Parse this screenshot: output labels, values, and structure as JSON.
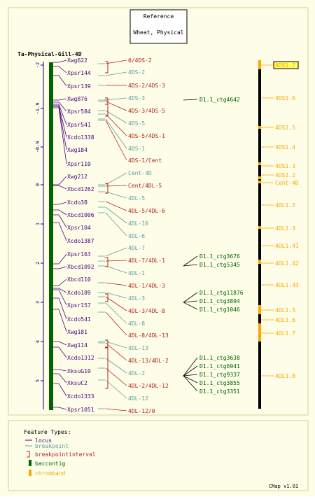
{
  "reference_box": {
    "line1": "Reference",
    "line2": "Wheat, Physical"
  },
  "map_title": "Ta-Physical-Gill-4D",
  "scale_ticks": [
    "-2",
    "-1.9",
    "-0.9",
    "0",
    "1",
    "2",
    "3",
    "4",
    "5"
  ],
  "loci": [
    "Xwg622",
    "Xpsr144",
    "Xpsr139",
    "Xwg876",
    "Xpsr584",
    "Xpsr541",
    "Xcdo1338",
    "Xwg184",
    "Xpsr110",
    "Xwg212",
    "Xbcd1262",
    "Xcdo38",
    "Xbcd1006",
    "Xpsr104",
    "Xcdo1387",
    "Xpsr163",
    "Xbcd1092",
    "Xbcd110",
    "Xcdo189",
    "Xpsr157",
    "Xcdo541",
    "Xwg181",
    "Xwg114",
    "Xcdo1312",
    "XksuG10",
    "XksuC2",
    "Xcdo1333",
    "Xpsr1051"
  ],
  "bins": [
    {
      "label": "0/4DS-2",
      "kind": "interval"
    },
    {
      "label": "4DS-2",
      "kind": "breakpoint"
    },
    {
      "label": "4DS-2/4DS-3",
      "kind": "interval"
    },
    {
      "label": "4DS-3",
      "kind": "breakpoint"
    },
    {
      "label": "4DS-3/4DS-5",
      "kind": "interval"
    },
    {
      "label": "4DS-5",
      "kind": "breakpoint"
    },
    {
      "label": "4DS-5/4DS-1",
      "kind": "interval"
    },
    {
      "label": "4DS-1",
      "kind": "breakpoint"
    },
    {
      "label": "4DS-1/Cent",
      "kind": "interval"
    },
    {
      "label": "Cent-4D",
      "kind": "breakpoint"
    },
    {
      "label": "Cent/4DL-5",
      "kind": "interval"
    },
    {
      "label": "4DL-5",
      "kind": "breakpoint"
    },
    {
      "label": "4DL-5/4DL-6",
      "kind": "interval"
    },
    {
      "label": "4DL-10",
      "kind": "breakpoint"
    },
    {
      "label": "4DL-6",
      "kind": "breakpoint"
    },
    {
      "label": "4DL-7",
      "kind": "breakpoint"
    },
    {
      "label": "4DL-7/4DL-1",
      "kind": "interval"
    },
    {
      "label": "4DL-1",
      "kind": "breakpoint"
    },
    {
      "label": "4DL-1/4DL-3",
      "kind": "interval"
    },
    {
      "label": "4DL-3",
      "kind": "breakpoint"
    },
    {
      "label": "4DL-3/4DL-8",
      "kind": "interval"
    },
    {
      "label": "4DL-8",
      "kind": "breakpoint"
    },
    {
      "label": "4DL-8/4DL-13",
      "kind": "interval"
    },
    {
      "label": "4DL-13",
      "kind": "breakpoint"
    },
    {
      "label": "4DL-13/4DL-2",
      "kind": "interval"
    },
    {
      "label": "4DL-2",
      "kind": "breakpoint"
    },
    {
      "label": "4DL-2/4DL-12",
      "kind": "interval"
    },
    {
      "label": "4DL-12",
      "kind": "breakpoint"
    },
    {
      "label": "4DL-12/0",
      "kind": "interval"
    }
  ],
  "contigs": [
    "D1.1_ctg4642",
    "D1.1_ctg3676",
    "D1.1_ctg5345",
    "D1.1_ctg11876",
    "D1.1_ctg3894",
    "D1.1_ctg1046",
    "D1.1_ctg3638",
    "D1.1_ctg6941",
    "D1.1_ctg9337",
    "D1.1_ctg3855",
    "D1.1_ctg3351"
  ],
  "chrombands": [
    "4DS1.7",
    "4DS1.6",
    "4DS1.5",
    "4DS1.4",
    "4DS1.3",
    "4DS1.2",
    "Cent-4D",
    "4DL1.2",
    "4DL1.3",
    "4DL1.41",
    "4DL1.42",
    "4DL1.43",
    "4DL1.5",
    "4DL1.6",
    "4DL1.7",
    "4DL1.8"
  ],
  "legend": {
    "title": "Feature Types:",
    "items": [
      {
        "label": "locus",
        "symbol": "line",
        "color": "#4b0082"
      },
      {
        "label": "breakpoint",
        "symbol": "line",
        "color": "#5f9ea0"
      },
      {
        "label": "breakpointinterval",
        "symbol": "bracket",
        "color": "#b22222"
      },
      {
        "label": "baccontig",
        "symbol": "box",
        "color": "#006400"
      },
      {
        "label": "chromband",
        "symbol": "box",
        "color": "#ffa500"
      }
    ]
  },
  "footer": "CMap v1.01",
  "colors": {
    "locus": "#4b0082",
    "breakpoint": "#5f9ea0",
    "interval": "#b22222",
    "contig": "#006400",
    "chromband": "#ffa500",
    "scale": "#00008b",
    "background": "#fdfde8"
  }
}
